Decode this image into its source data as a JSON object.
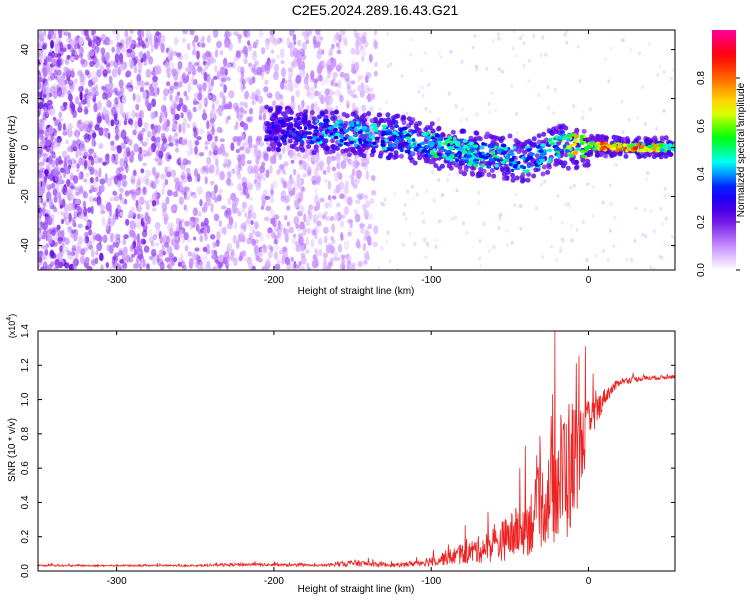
{
  "figure": {
    "title": "C2E5.2024.289.16.43.G21"
  },
  "chart_data": [
    {
      "type": "heatmap",
      "xlabel": "Height of straight line (km)",
      "ylabel": "Frequency (Hz)",
      "xlim": [
        -350,
        55
      ],
      "ylim": [
        -50,
        48
      ],
      "xticks": [
        -300,
        -200,
        -100,
        0
      ],
      "yticks": [
        -40,
        -20,
        0,
        20,
        40
      ],
      "colorbar": {
        "label": "Normalized spectral amplitude",
        "range": [
          0.0,
          1.0
        ],
        "ticks": [
          0.0,
          0.2,
          0.4,
          0.6,
          0.8
        ],
        "colors": [
          "#ffffff",
          "#c080ff",
          "#6000e0",
          "#0000ff",
          "#00ffff",
          "#00ff00",
          "#ffff00",
          "#ff8000",
          "#ff0000",
          "#ff00a0"
        ]
      },
      "features": {
        "noise_region_x": [
          -350,
          -135
        ],
        "signal_track": [
          {
            "x": -200,
            "y": 8,
            "amplitude": 0.3
          },
          {
            "x": -160,
            "y": 6,
            "amplitude": 0.45
          },
          {
            "x": -120,
            "y": 4,
            "amplitude": 0.45
          },
          {
            "x": -80,
            "y": -2,
            "amplitude": 0.5
          },
          {
            "x": -40,
            "y": -5,
            "amplitude": 0.45
          },
          {
            "x": -20,
            "y": 0,
            "amplitude": 0.55
          },
          {
            "x": 0,
            "y": 1,
            "amplitude": 0.8
          },
          {
            "x": 20,
            "y": 0,
            "amplitude": 0.95
          },
          {
            "x": 55,
            "y": 0,
            "amplitude": 0.6
          }
        ]
      }
    },
    {
      "type": "line",
      "xlabel": "Height of straight line (km)",
      "ylabel": "SNR (10 * v/v)",
      "y_multiplier_label": "(x10",
      "y_multiplier_exp": "4",
      "y_multiplier_close": ")",
      "xlim": [
        -350,
        55
      ],
      "ylim": [
        0.0,
        1.4
      ],
      "xticks": [
        -300,
        -200,
        -100,
        0
      ],
      "yticks": [
        0.0,
        0.2,
        0.4,
        0.6,
        0.8,
        1.0,
        1.2,
        1.4
      ],
      "series": [
        {
          "color": "#ee2222",
          "envelope": [
            {
              "x": -350,
              "base": 0.03,
              "spike": 0.01
            },
            {
              "x": -250,
              "base": 0.03,
              "spike": 0.01
            },
            {
              "x": -220,
              "base": 0.035,
              "spike": 0.02
            },
            {
              "x": -170,
              "base": 0.03,
              "spike": 0.01
            },
            {
              "x": -150,
              "base": 0.04,
              "spike": 0.04
            },
            {
              "x": -120,
              "base": 0.03,
              "spike": 0.02
            },
            {
              "x": -100,
              "base": 0.05,
              "spike": 0.06
            },
            {
              "x": -80,
              "base": 0.08,
              "spike": 0.12
            },
            {
              "x": -60,
              "base": 0.12,
              "spike": 0.2
            },
            {
              "x": -40,
              "base": 0.2,
              "spike": 0.35
            },
            {
              "x": -25,
              "base": 0.35,
              "spike": 0.55
            },
            {
              "x": -15,
              "base": 0.45,
              "spike": 0.9
            },
            {
              "x": -10,
              "base": 0.5,
              "spike": 0.8
            },
            {
              "x": -5,
              "base": 0.65,
              "spike": 0.5
            },
            {
              "x": 0,
              "base": 0.8,
              "spike": 0.3
            },
            {
              "x": 10,
              "base": 1.0,
              "spike": 0.1
            },
            {
              "x": 20,
              "base": 1.1,
              "spike": 0.04
            },
            {
              "x": 35,
              "base": 1.12,
              "spike": 0.03
            },
            {
              "x": 55,
              "base": 1.13,
              "spike": 0.02
            }
          ]
        }
      ]
    }
  ]
}
